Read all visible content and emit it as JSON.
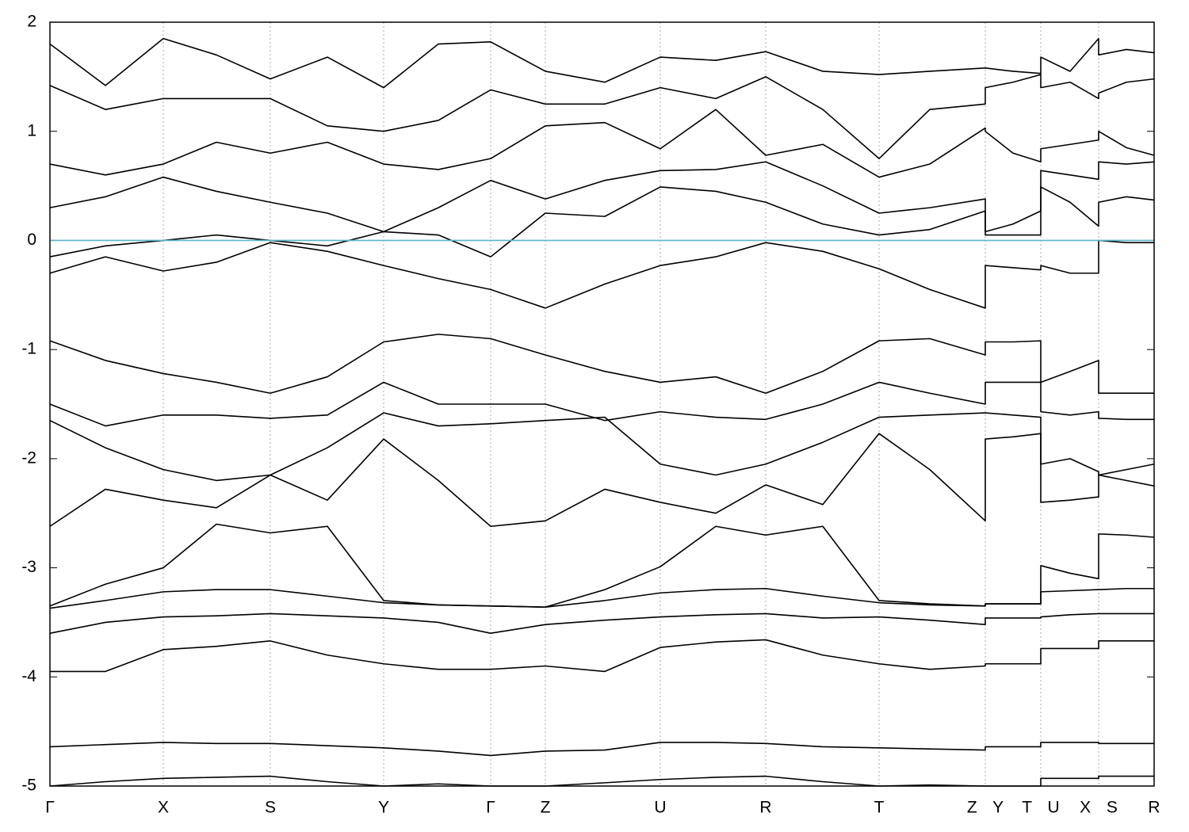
{
  "chart_data": {
    "type": "line",
    "x": [
      0,
      0.7,
      1.43,
      2.1,
      2.78,
      3.5,
      4.21,
      4.9,
      5.56,
      6.25,
      7.0,
      7.7,
      8.4,
      9.03,
      9.75,
      10.46,
      11.1,
      11.8,
      11.8,
      12.15,
      12.5,
      12.5,
      12.87,
      13.23,
      13.23,
      13.58,
      13.93
    ],
    "xlim": [
      0,
      13.93
    ],
    "xticks": [
      {
        "value": 0,
        "label": "Γ"
      },
      {
        "value": 1.43,
        "label": "X"
      },
      {
        "value": 2.78,
        "label": "S"
      },
      {
        "value": 4.21,
        "label": "Y"
      },
      {
        "value": 5.56,
        "label": "Γ"
      },
      {
        "value": 6.25,
        "label": "Z"
      },
      {
        "value": 7.7,
        "label": "U"
      },
      {
        "value": 9.03,
        "label": "R"
      },
      {
        "value": 10.46,
        "label": "T"
      },
      {
        "value": 11.8,
        "label": "Z Y"
      },
      {
        "value": 12.5,
        "label": "T U"
      },
      {
        "value": 13.23,
        "label": "X S"
      },
      {
        "value": 13.93,
        "label": "R"
      }
    ],
    "ylim": [
      -5,
      2
    ],
    "yticks": [
      -5,
      -4,
      -3,
      -2,
      -1,
      0,
      1,
      2
    ],
    "grid": true,
    "color": "#000000",
    "fermi_level": 0,
    "fermi_color": "#5fb4c8",
    "series": [
      {
        "values": [
          -5.0,
          -4.96,
          -4.93,
          -4.92,
          -4.91,
          -4.96,
          -5.0,
          -4.98,
          -5.0,
          -5.0,
          -4.97,
          -4.94,
          -4.92,
          -4.91,
          -4.96,
          -5.0,
          -4.99,
          -5.0,
          -5.0,
          -5.0,
          -5.0,
          -4.93,
          -4.93,
          -4.93,
          -4.91,
          -4.91,
          -4.91
        ]
      },
      {
        "values": [
          -4.64,
          -4.62,
          -4.6,
          -4.61,
          -4.61,
          -4.63,
          -4.65,
          -4.68,
          -4.72,
          -4.68,
          -4.67,
          -4.6,
          -4.6,
          -4.61,
          -4.64,
          -4.65,
          -4.66,
          -4.67,
          -4.64,
          -4.64,
          -4.64,
          -4.6,
          -4.6,
          -4.6,
          -4.61,
          -4.61,
          -4.61
        ]
      },
      {
        "values": [
          -3.95,
          -3.95,
          -3.75,
          -3.72,
          -3.67,
          -3.8,
          -3.88,
          -3.93,
          -3.93,
          -3.9,
          -3.95,
          -3.73,
          -3.68,
          -3.66,
          -3.8,
          -3.88,
          -3.93,
          -3.9,
          -3.88,
          -3.88,
          -3.88,
          -3.74,
          -3.74,
          -3.74,
          -3.67,
          -3.67,
          -3.67
        ]
      },
      {
        "values": [
          -3.6,
          -3.5,
          -3.45,
          -3.44,
          -3.42,
          -3.44,
          -3.46,
          -3.5,
          -3.6,
          -3.52,
          -3.48,
          -3.45,
          -3.43,
          -3.42,
          -3.46,
          -3.45,
          -3.48,
          -3.52,
          -3.46,
          -3.46,
          -3.46,
          -3.45,
          -3.43,
          -3.42,
          -3.42,
          -3.42,
          -3.42
        ]
      },
      {
        "values": [
          -3.37,
          -3.3,
          -3.22,
          -3.2,
          -3.2,
          -3.26,
          -3.32,
          -3.34,
          -3.35,
          -3.36,
          -3.3,
          -3.23,
          -3.2,
          -3.19,
          -3.26,
          -3.32,
          -3.34,
          -3.35,
          -3.33,
          -3.33,
          -3.33,
          -3.22,
          -3.21,
          -3.2,
          -3.2,
          -3.19,
          -3.19
        ]
      },
      {
        "values": [
          -3.35,
          -3.15,
          -3.0,
          -2.6,
          -2.68,
          -2.62,
          -3.3,
          -3.34,
          -3.35,
          -3.36,
          -3.2,
          -2.99,
          -2.62,
          -2.7,
          -2.62,
          -3.3,
          -3.33,
          -3.35,
          -3.33,
          -3.33,
          -3.33,
          -2.98,
          -3.05,
          -3.1,
          -2.69,
          -2.7,
          -2.72
        ]
      },
      {
        "values": [
          -2.62,
          -2.28,
          -2.38,
          -2.45,
          -2.15,
          -2.38,
          -1.82,
          -2.2,
          -2.62,
          -2.57,
          -2.28,
          -2.4,
          -2.5,
          -2.24,
          -2.42,
          -1.77,
          -2.1,
          -2.57,
          -1.82,
          -1.8,
          -1.77,
          -2.4,
          -2.38,
          -2.35,
          -2.15,
          -2.2,
          -2.25
        ]
      },
      {
        "values": [
          -1.65,
          -1.9,
          -2.1,
          -2.2,
          -2.15,
          -1.9,
          -1.58,
          -1.7,
          -1.68,
          -1.65,
          -1.62,
          -2.05,
          -2.15,
          -2.05,
          -1.85,
          -1.62,
          -1.6,
          -1.58,
          -1.58,
          -1.6,
          -1.62,
          -2.05,
          -2.0,
          -2.12,
          -2.15,
          -2.1,
          -2.05
        ]
      },
      {
        "values": [
          -1.5,
          -1.7,
          -1.6,
          -1.6,
          -1.63,
          -1.6,
          -1.3,
          -1.5,
          -1.5,
          -1.5,
          -1.65,
          -1.57,
          -1.62,
          -1.64,
          -1.5,
          -1.3,
          -1.4,
          -1.5,
          -1.3,
          -1.3,
          -1.3,
          -1.57,
          -1.6,
          -1.57,
          -1.63,
          -1.64,
          -1.64
        ]
      },
      {
        "values": [
          -0.92,
          -1.1,
          -1.22,
          -1.3,
          -1.4,
          -1.25,
          -0.93,
          -0.86,
          -0.9,
          -1.05,
          -1.2,
          -1.3,
          -1.25,
          -1.4,
          -1.2,
          -0.92,
          -0.9,
          -1.05,
          -0.93,
          -0.93,
          -0.92,
          -1.3,
          -1.2,
          -1.1,
          -1.4,
          -1.4,
          -1.4
        ]
      },
      {
        "values": [
          -0.3,
          -0.15,
          -0.28,
          -0.2,
          -0.02,
          -0.1,
          -0.23,
          -0.35,
          -0.45,
          -0.62,
          -0.4,
          -0.23,
          -0.15,
          -0.02,
          -0.1,
          -0.26,
          -0.45,
          -0.62,
          -0.23,
          -0.25,
          -0.27,
          -0.23,
          -0.3,
          -0.3,
          0.0,
          -0.02,
          -0.02
        ]
      },
      {
        "values": [
          -0.15,
          -0.05,
          0.0,
          0.05,
          0.0,
          -0.05,
          0.08,
          0.05,
          -0.15,
          0.25,
          0.22,
          0.49,
          0.45,
          0.35,
          0.15,
          0.05,
          0.1,
          0.27,
          0.05,
          0.05,
          0.05,
          0.49,
          0.35,
          0.13,
          0.35,
          0.4,
          0.37
        ]
      },
      {
        "values": [
          0.3,
          0.4,
          0.58,
          0.45,
          0.35,
          0.25,
          0.08,
          0.3,
          0.55,
          0.38,
          0.55,
          0.64,
          0.65,
          0.72,
          0.5,
          0.25,
          0.3,
          0.38,
          0.08,
          0.15,
          0.27,
          0.64,
          0.6,
          0.56,
          0.72,
          0.7,
          0.72
        ]
      },
      {
        "values": [
          0.7,
          0.6,
          0.7,
          0.9,
          0.8,
          0.9,
          0.7,
          0.65,
          0.75,
          1.05,
          1.08,
          0.84,
          1.2,
          0.78,
          0.88,
          0.58,
          0.7,
          1.03,
          1.0,
          0.8,
          0.72,
          0.84,
          0.88,
          0.92,
          1.0,
          0.85,
          0.78
        ]
      },
      {
        "values": [
          1.42,
          1.2,
          1.3,
          1.3,
          1.3,
          1.05,
          1.0,
          1.1,
          1.38,
          1.25,
          1.25,
          1.4,
          1.3,
          1.5,
          1.2,
          0.75,
          1.2,
          1.25,
          1.4,
          1.45,
          1.52,
          1.4,
          1.45,
          1.3,
          1.35,
          1.45,
          1.48
        ]
      },
      {
        "values": [
          1.8,
          1.42,
          1.85,
          1.7,
          1.48,
          1.68,
          1.4,
          1.8,
          1.82,
          1.55,
          1.45,
          1.68,
          1.65,
          1.73,
          1.55,
          1.52,
          1.55,
          1.58,
          1.58,
          1.55,
          1.53,
          1.68,
          1.55,
          1.85,
          1.7,
          1.75,
          1.72
        ]
      }
    ]
  }
}
